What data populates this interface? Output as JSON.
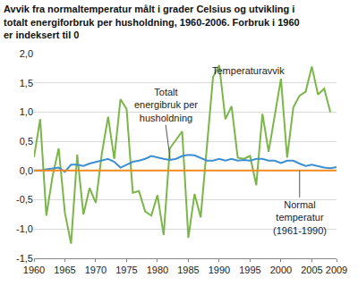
{
  "chart_data": {
    "type": "line",
    "title": "Avvik fra normaltemperatur målt i grader Celsius og utvikling i totalt energiforbruk per husholdning, 1960-2006. Forbruk i 1960 er indeksert til 0",
    "x": [
      1960,
      1961,
      1962,
      1963,
      1964,
      1965,
      1966,
      1967,
      1968,
      1969,
      1970,
      1971,
      1972,
      1973,
      1974,
      1975,
      1976,
      1977,
      1978,
      1979,
      1980,
      1981,
      1982,
      1983,
      1984,
      1985,
      1986,
      1987,
      1988,
      1989,
      1990,
      1991,
      1992,
      1993,
      1994,
      1995,
      1996,
      1997,
      1998,
      1999,
      2000,
      2001,
      2002,
      2003,
      2004,
      2005,
      2006,
      2007,
      2008,
      2009
    ],
    "series": [
      {
        "name": "Temperaturavvik",
        "color": "#7ab648",
        "values": [
          0.23,
          0.88,
          -0.77,
          -0.1,
          0.38,
          -0.72,
          -1.25,
          0.27,
          -0.75,
          -0.3,
          -0.55,
          0.3,
          0.92,
          0.2,
          1.22,
          1.05,
          -0.38,
          -0.35,
          -0.7,
          -0.77,
          -0.42,
          -1.1,
          0.38,
          0.52,
          0.67,
          -1.15,
          -0.4,
          -0.8,
          0.42,
          1.6,
          1.8,
          0.88,
          1.1,
          0.22,
          0.2,
          0.25,
          -0.25,
          0.97,
          0.32,
          0.95,
          1.57,
          0.22,
          1.08,
          1.28,
          1.35,
          1.78,
          1.3,
          1.4,
          1.0,
          null
        ]
      },
      {
        "name": "Totalt energibruk per husholdning",
        "color": "#3d8fd1",
        "values": [
          0,
          0,
          0.02,
          0.03,
          0.05,
          -0.02,
          0.1,
          0.1,
          0.08,
          0.12,
          0.15,
          0.18,
          0.2,
          0.15,
          0.05,
          0.1,
          0.15,
          0.17,
          0.2,
          0.25,
          0.22,
          0.2,
          0.18,
          0.2,
          0.25,
          0.27,
          0.26,
          0.22,
          0.17,
          0.17,
          0.2,
          0.17,
          0.2,
          0.17,
          0.18,
          0.17,
          0.2,
          0.2,
          0.17,
          0.17,
          0.13,
          0.17,
          0.17,
          0.12,
          0.08,
          0.1,
          0.07,
          0.05,
          0.04,
          0.06
        ]
      },
      {
        "name": "Normal temperatur (1961-1990)",
        "color": "#f08a1c",
        "values": [
          0,
          0,
          0,
          0,
          0,
          0,
          0,
          0,
          0,
          0,
          0,
          0,
          0,
          0,
          0,
          0,
          0,
          0,
          0,
          0,
          0,
          0,
          0,
          0,
          0,
          0,
          0,
          0,
          0,
          0,
          0,
          0,
          0,
          0,
          0,
          0,
          0,
          0,
          0,
          0,
          0,
          0,
          0,
          0,
          0,
          0,
          0,
          0,
          0,
          0
        ]
      }
    ],
    "xlim": [
      1960,
      2009
    ],
    "xticks": [
      1960,
      1965,
      1970,
      1975,
      1980,
      1985,
      1990,
      1995,
      2000,
      2005,
      2009
    ],
    "ylim": [
      -1.5,
      2.0
    ],
    "yticks": [
      {
        "value": -1.5,
        "label": "-1,5"
      },
      {
        "value": -1.0,
        "label": "-1,0"
      },
      {
        "value": -0.5,
        "label": "-0,5"
      },
      {
        "value": 0.0,
        "label": "0,0"
      },
      {
        "value": 0.5,
        "label": "0,5"
      },
      {
        "value": 1.0,
        "label": "1,0"
      },
      {
        "value": 1.5,
        "label": "1,5"
      },
      {
        "value": 2.0,
        "label": "2,0"
      }
    ],
    "grid": true
  }
}
